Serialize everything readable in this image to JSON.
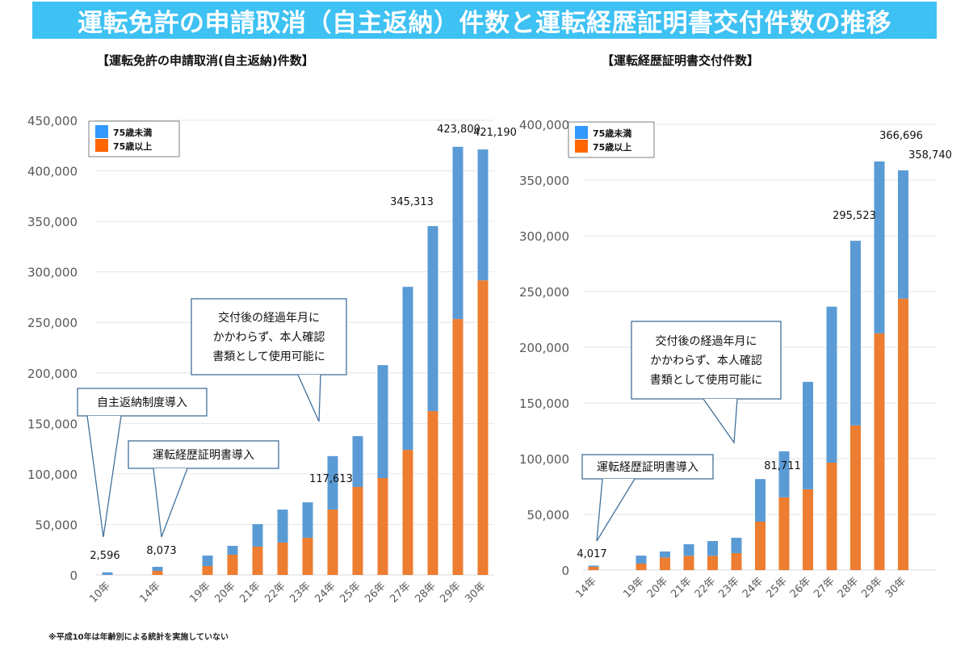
{
  "page": {
    "title": "運転免許の申請取消（自主返納）件数と運転経歴証明書交付件数の推移",
    "footnote": "※平成10年は年齢別による統計を実施していない"
  },
  "colors": {
    "banner": "#3EC1F3",
    "under75_bar": "#5B9BD5",
    "over75_bar": "#ED7D31",
    "under75_legend": "#3399FF",
    "over75_legend": "#FF6600",
    "callout_border": "#41719C",
    "grid": "#E6E6E6"
  },
  "chart_data": [
    {
      "type": "bar",
      "stacked": true,
      "title": "【運転免許の申請取消(自主返納)件数】",
      "xlabel": "",
      "ylabel": "",
      "ylim": [
        0,
        450000
      ],
      "yticks": [
        0,
        50000,
        100000,
        150000,
        200000,
        250000,
        300000,
        350000,
        400000,
        450000
      ],
      "ytick_labels": [
        "0",
        "50,000",
        "100,000",
        "150,000",
        "200,000",
        "250,000",
        "300,000",
        "350,000",
        "400,000",
        "450,000"
      ],
      "grid": true,
      "legend_position": "top-left",
      "categories": [
        "10年",
        "14年",
        "19年",
        "20年",
        "21年",
        "22年",
        "23年",
        "24年",
        "25年",
        "26年",
        "27年",
        "28年",
        "29年",
        "30年"
      ],
      "category_slots": [
        0,
        2,
        4,
        5,
        6,
        7,
        8,
        9,
        10,
        11,
        12,
        13,
        14,
        15
      ],
      "slot_count": 16,
      "series": [
        {
          "name": "75歳以上",
          "values": [
            0,
            4000,
            8800,
            20000,
            28000,
            32000,
            36800,
            64700,
            87100,
            95900,
            123800,
            162200,
            253300,
            291600
          ]
        },
        {
          "name": "75歳未満",
          "values": [
            2596,
            4073,
            10400,
            8800,
            22300,
            32700,
            35100,
            52913,
            50300,
            111800,
            161400,
            183113,
            170500,
            129590
          ]
        }
      ],
      "totals": [
        2596,
        8073,
        19200,
        28800,
        50300,
        64700,
        71900,
        117613,
        137400,
        207700,
        285200,
        345313,
        423800,
        421190
      ],
      "data_labels": [
        {
          "category": "10年",
          "text": "2,596"
        },
        {
          "category": "14年",
          "text": "8,073"
        },
        {
          "category": "24年",
          "text": "117,613"
        },
        {
          "category": "28年",
          "text": "345,313"
        },
        {
          "category": "29年",
          "text": "423,800"
        },
        {
          "category": "30年",
          "text": "421,190"
        }
      ],
      "legend": [
        "75歳未満",
        "75歳以上"
      ],
      "annotations": [
        {
          "text": [
            "自主返納制度導入"
          ],
          "points_to": "10年"
        },
        {
          "text": [
            "運転経歴証明書導入"
          ],
          "points_to": "14年"
        },
        {
          "text": [
            "交付後の経過年月に",
            "かかわらず、本人確認",
            "書類として使用可能に"
          ],
          "points_to": "24年"
        }
      ]
    },
    {
      "type": "bar",
      "stacked": true,
      "title": "【運転経歴証明書交付件数】",
      "xlabel": "",
      "ylabel": "",
      "ylim": [
        0,
        400000
      ],
      "yticks": [
        0,
        50000,
        100000,
        150000,
        200000,
        250000,
        300000,
        350000,
        400000
      ],
      "ytick_labels": [
        "0",
        "50,000",
        "100,000",
        "150,000",
        "200,000",
        "250,000",
        "300,000",
        "350,000",
        "400,000"
      ],
      "grid": true,
      "legend_position": "top-left",
      "categories": [
        "14年",
        "19年",
        "20年",
        "21年",
        "22年",
        "23年",
        "24年",
        "25年",
        "26年",
        "27年",
        "28年",
        "29年",
        "30年"
      ],
      "category_slots": [
        0,
        2,
        3,
        4,
        5,
        6,
        7,
        8,
        9,
        10,
        11,
        12,
        13
      ],
      "slot_count": 14,
      "series": [
        {
          "name": "75歳以上",
          "values": [
            2900,
            5800,
            11300,
            12800,
            12800,
            15200,
            43500,
            65300,
            72500,
            96400,
            129800,
            212400,
            243600
          ]
        },
        {
          "name": "75歳未満",
          "values": [
            1117,
            7200,
            5400,
            10400,
            13300,
            13800,
            38211,
            41300,
            96400,
            140000,
            165723,
            154296,
            115140
          ]
        }
      ],
      "totals": [
        4017,
        13000,
        16700,
        23200,
        26100,
        29000,
        81711,
        106600,
        168900,
        236400,
        295523,
        366696,
        358740
      ],
      "data_labels": [
        {
          "category": "14年",
          "text": "4,017"
        },
        {
          "category": "24年",
          "text": "81,711"
        },
        {
          "category": "28年",
          "text": "295,523"
        },
        {
          "category": "29年",
          "text": "366,696"
        },
        {
          "category": "30年",
          "text": "358,740"
        }
      ],
      "legend": [
        "75歳未満",
        "75歳以上"
      ],
      "annotations": [
        {
          "text": [
            "運転経歴証明書導入"
          ],
          "points_to": "14年"
        },
        {
          "text": [
            "交付後の経過年月に",
            "かかわらず、本人確認",
            "書類として使用可能に"
          ],
          "points_to": "24年"
        }
      ]
    }
  ]
}
